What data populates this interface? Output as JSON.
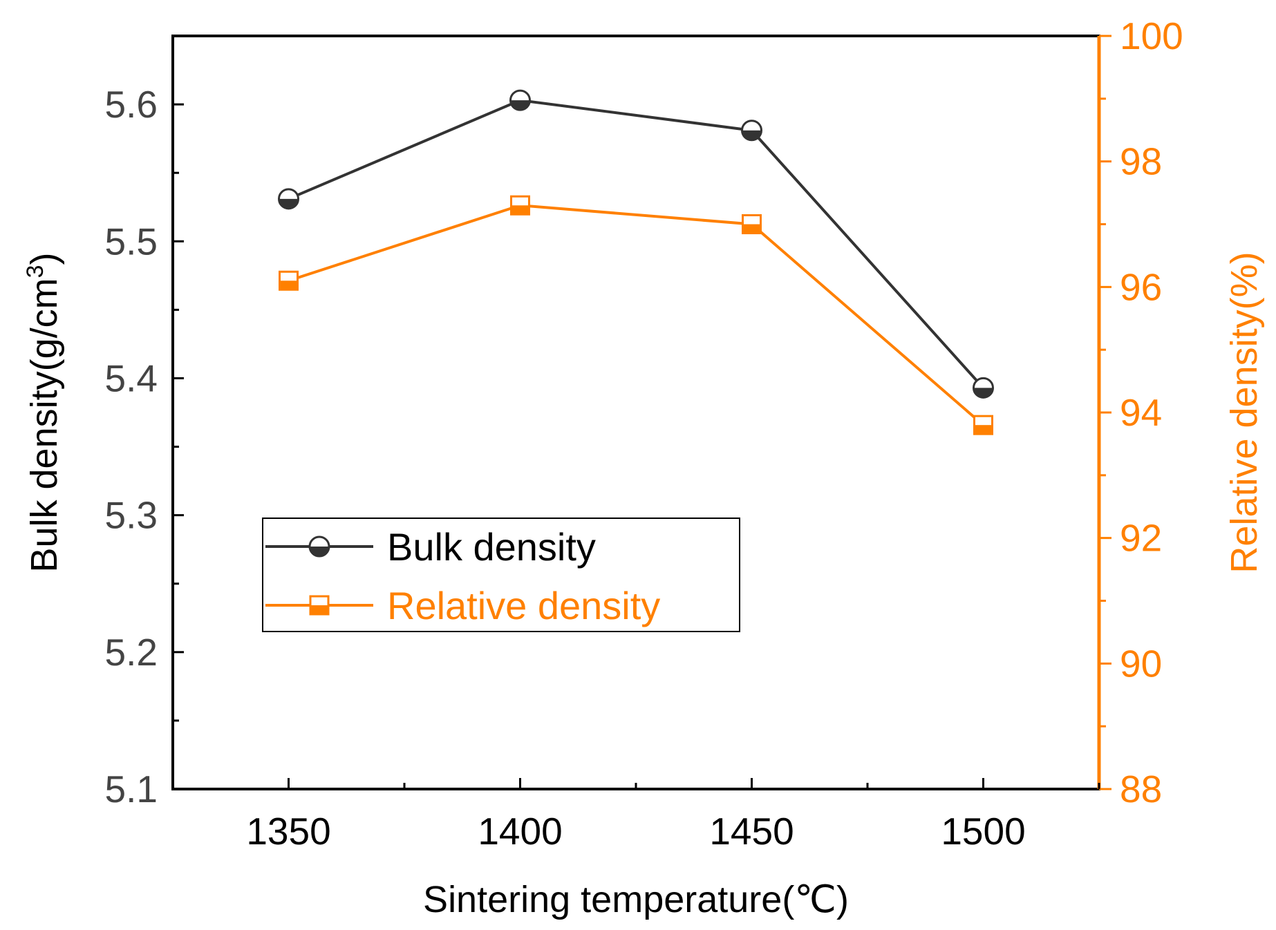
{
  "chart_data": {
    "type": "line",
    "x": [
      1350,
      1400,
      1450,
      1500
    ],
    "xlabel": "Sintering temperature(℃)",
    "xlim": [
      1325,
      1525
    ],
    "xticks": [
      "1350",
      "1400",
      "1450",
      "1500"
    ],
    "xtick_values": [
      1350,
      1400,
      1450,
      1500
    ],
    "y_left": {
      "label": "Bulk density(g/cm",
      "label_sup": "3",
      "label_close": ")",
      "lim": [
        5.1,
        5.65
      ],
      "ticks": [
        "5.1",
        "5.2",
        "5.3",
        "5.4",
        "5.5",
        "5.6"
      ],
      "tick_values": [
        5.1,
        5.2,
        5.3,
        5.4,
        5.5,
        5.6
      ],
      "color": "#000000"
    },
    "y_right": {
      "label": "Relative density(%)",
      "lim": [
        88,
        100
      ],
      "ticks": [
        "88",
        "90",
        "92",
        "94",
        "96",
        "98",
        "100"
      ],
      "tick_values": [
        88,
        90,
        92,
        94,
        96,
        98,
        100
      ],
      "color": "#ff8000"
    },
    "series": [
      {
        "name": "Bulk density",
        "axis": "left",
        "values": [
          5.531,
          5.603,
          5.581,
          5.393
        ],
        "color": "#333333",
        "marker": "half-filled-circle"
      },
      {
        "name": "Relative density",
        "axis": "right",
        "values": [
          96.1,
          97.3,
          97.0,
          93.8
        ],
        "color": "#ff8000",
        "marker": "half-filled-square"
      }
    ],
    "legend": {
      "position": "lower-left",
      "items": [
        "Bulk density",
        "Relative density"
      ]
    },
    "grid": false
  }
}
